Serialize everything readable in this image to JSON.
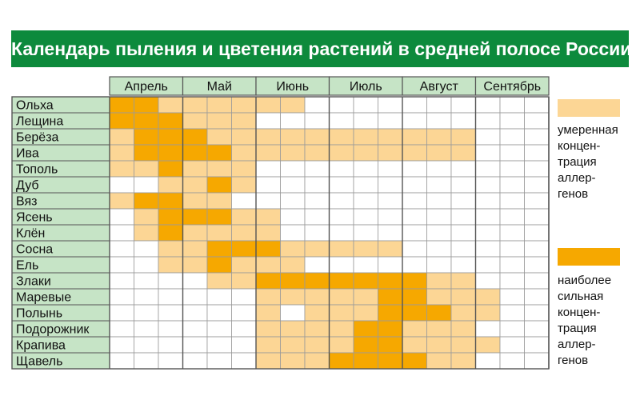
{
  "title": "Календарь пыления и цветения растений в средней полосе России",
  "colors": {
    "none": "#ffffff",
    "moderate": "#fcd695",
    "strong": "#f6a800",
    "label_bg": "#c6e4c6",
    "header_bg": "#c6e4c6",
    "border": "#555555"
  },
  "chart_data": {
    "type": "heatmap",
    "title": "Календарь пыления и цветения растений в средней полосе России",
    "columns": [
      "Апрель",
      "Май",
      "Июнь",
      "Июль",
      "Август",
      "Сентябрь"
    ],
    "subcolumns_per_month": 3,
    "value_legend": {
      "0": "",
      "1": "умеренная концентрация аллергенов",
      "2": "наиболее сильная концентрация аллергенов"
    },
    "rows": [
      {
        "label": "Ольха",
        "values": [
          2,
          2,
          1,
          1,
          1,
          1,
          1,
          1,
          0,
          0,
          0,
          0,
          0,
          0,
          0,
          0,
          0,
          0
        ]
      },
      {
        "label": "Лещина",
        "values": [
          2,
          2,
          2,
          1,
          1,
          1,
          0,
          0,
          0,
          0,
          0,
          0,
          0,
          0,
          0,
          0,
          0,
          0
        ]
      },
      {
        "label": "Берёза",
        "values": [
          1,
          2,
          2,
          2,
          1,
          1,
          1,
          1,
          1,
          1,
          1,
          1,
          1,
          1,
          1,
          0,
          0,
          0
        ]
      },
      {
        "label": "Ива",
        "values": [
          1,
          2,
          2,
          2,
          2,
          1,
          1,
          1,
          1,
          1,
          1,
          1,
          1,
          1,
          1,
          0,
          0,
          0
        ]
      },
      {
        "label": "Тополь",
        "values": [
          1,
          1,
          2,
          1,
          1,
          1,
          0,
          0,
          0,
          0,
          0,
          0,
          0,
          0,
          0,
          0,
          0,
          0
        ]
      },
      {
        "label": "Дуб",
        "values": [
          0,
          0,
          1,
          1,
          2,
          1,
          0,
          0,
          0,
          0,
          0,
          0,
          0,
          0,
          0,
          0,
          0,
          0
        ]
      },
      {
        "label": "Вяз",
        "values": [
          1,
          2,
          2,
          1,
          1,
          0,
          0,
          0,
          0,
          0,
          0,
          0,
          0,
          0,
          0,
          0,
          0,
          0
        ]
      },
      {
        "label": "Ясень",
        "values": [
          0,
          1,
          2,
          2,
          2,
          1,
          1,
          0,
          0,
          0,
          0,
          0,
          0,
          0,
          0,
          0,
          0,
          0
        ]
      },
      {
        "label": "Клён",
        "values": [
          0,
          1,
          2,
          1,
          1,
          1,
          1,
          0,
          0,
          0,
          0,
          0,
          0,
          0,
          0,
          0,
          0,
          0
        ]
      },
      {
        "label": "Сосна",
        "values": [
          0,
          0,
          1,
          1,
          2,
          2,
          2,
          1,
          1,
          1,
          1,
          1,
          0,
          0,
          0,
          0,
          0,
          0
        ]
      },
      {
        "label": "Ель",
        "values": [
          0,
          0,
          1,
          1,
          2,
          1,
          1,
          1,
          0,
          0,
          0,
          0,
          0,
          0,
          0,
          0,
          0,
          0
        ]
      },
      {
        "label": "Злаки",
        "values": [
          0,
          0,
          0,
          0,
          1,
          1,
          2,
          2,
          2,
          2,
          2,
          2,
          2,
          1,
          1,
          0,
          0,
          0
        ]
      },
      {
        "label": "Маревые",
        "values": [
          0,
          0,
          0,
          0,
          0,
          0,
          1,
          1,
          1,
          1,
          1,
          2,
          2,
          1,
          1,
          1,
          0,
          0
        ]
      },
      {
        "label": "Полынь",
        "values": [
          0,
          0,
          0,
          0,
          0,
          0,
          1,
          0,
          1,
          1,
          1,
          2,
          2,
          2,
          1,
          1,
          0,
          0
        ]
      },
      {
        "label": "Подорожник",
        "values": [
          0,
          0,
          0,
          0,
          0,
          0,
          1,
          1,
          1,
          1,
          2,
          2,
          1,
          1,
          1,
          0,
          0,
          0
        ]
      },
      {
        "label": "Крапива",
        "values": [
          0,
          0,
          0,
          0,
          0,
          0,
          1,
          1,
          1,
          1,
          2,
          2,
          1,
          1,
          1,
          1,
          0,
          0
        ]
      },
      {
        "label": "Щавель",
        "values": [
          0,
          0,
          0,
          0,
          0,
          0,
          1,
          1,
          1,
          2,
          2,
          2,
          2,
          1,
          1,
          0,
          0,
          0
        ]
      }
    ]
  },
  "legend": {
    "moderate_label": [
      "умеренная",
      "концен-",
      "трация",
      "аллер-",
      "генов"
    ],
    "strong_label": [
      "наиболее",
      "сильная",
      "концен-",
      "трация",
      "аллер-",
      "генов"
    ]
  }
}
